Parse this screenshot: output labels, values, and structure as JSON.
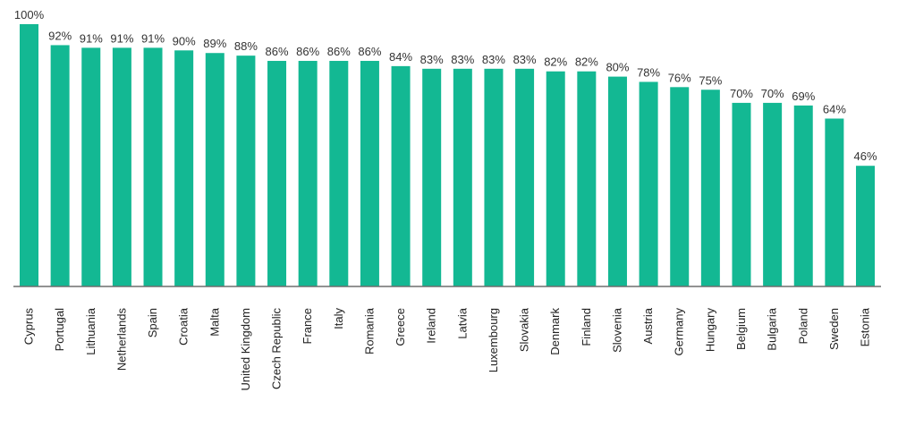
{
  "chart_data": {
    "type": "bar",
    "categories": [
      "Cyprus",
      "Portugal",
      "Lithuania",
      "Netherlands",
      "Spain",
      "Croatia",
      "Malta",
      "United Kingdom",
      "Czech Republic",
      "France",
      "Italy",
      "Romania",
      "Greece",
      "Ireland",
      "Latvia",
      "Luxembourg",
      "Slovakia",
      "Denmark",
      "Finland",
      "Slovenia",
      "Austria",
      "Germany",
      "Hungary",
      "Belgium",
      "Bulgaria",
      "Poland",
      "Sweden",
      "Estonia"
    ],
    "values": [
      100,
      92,
      91,
      91,
      91,
      90,
      89,
      88,
      86,
      86,
      86,
      86,
      84,
      83,
      83,
      83,
      83,
      82,
      82,
      80,
      78,
      76,
      75,
      70,
      70,
      69,
      64,
      46
    ],
    "value_labels": [
      "100%",
      "92%",
      "91%",
      "91%",
      "91%",
      "90%",
      "89%",
      "88%",
      "86%",
      "86%",
      "86%",
      "86%",
      "84%",
      "83%",
      "83%",
      "83%",
      "83%",
      "82%",
      "82%",
      "80%",
      "78%",
      "76%",
      "75%",
      "70%",
      "70%",
      "69%",
      "64%",
      "46%"
    ],
    "ylim": [
      0,
      100
    ],
    "grid": false,
    "bar_color": "#13b893",
    "axis_color": "#6e6e6e"
  }
}
